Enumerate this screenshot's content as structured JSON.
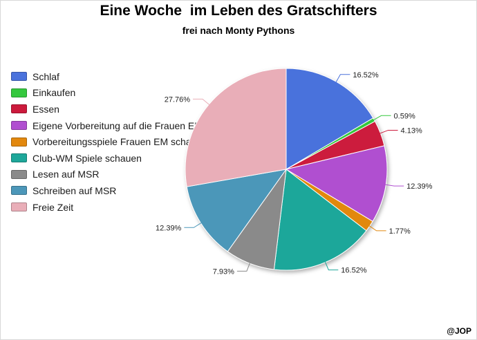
{
  "chart_data": {
    "type": "pie",
    "title": "Eine Woche  im Leben des Gratschifters",
    "subtitle": "frei nach Monty Pythons",
    "legend_position": "left",
    "slices": [
      {
        "name": "Schlaf",
        "value": 16.52,
        "label": "16.52%",
        "color": "#4a72dc"
      },
      {
        "name": "Einkaufen",
        "value": 0.59,
        "label": "0.59%",
        "color": "#35c83e"
      },
      {
        "name": "Essen",
        "value": 4.13,
        "label": "4.13%",
        "color": "#cc1a3c"
      },
      {
        "name": "Eigene Vorbereitung auf die Frauen EM",
        "value": 12.39,
        "label": "12.39%",
        "color": "#b04fd0"
      },
      {
        "name": "Vorbereitungsspiele Frauen EM schauen",
        "value": 1.77,
        "label": "1.77%",
        "color": "#e2880e"
      },
      {
        "name": "Club-WM Spiele schauen",
        "value": 16.52,
        "label": "16.52%",
        "color": "#1ea79a"
      },
      {
        "name": "Lesen auf MSR",
        "value": 7.93,
        "label": "7.93%",
        "color": "#8a8a8a"
      },
      {
        "name": "Schreiben auf MSR",
        "value": 12.39,
        "label": "12.39%",
        "color": "#4c97b9"
      },
      {
        "name": "Freie Zeit",
        "value": 27.76,
        "label": "27.76%",
        "color": "#e9aeb8"
      }
    ]
  },
  "credit": "@JOP"
}
